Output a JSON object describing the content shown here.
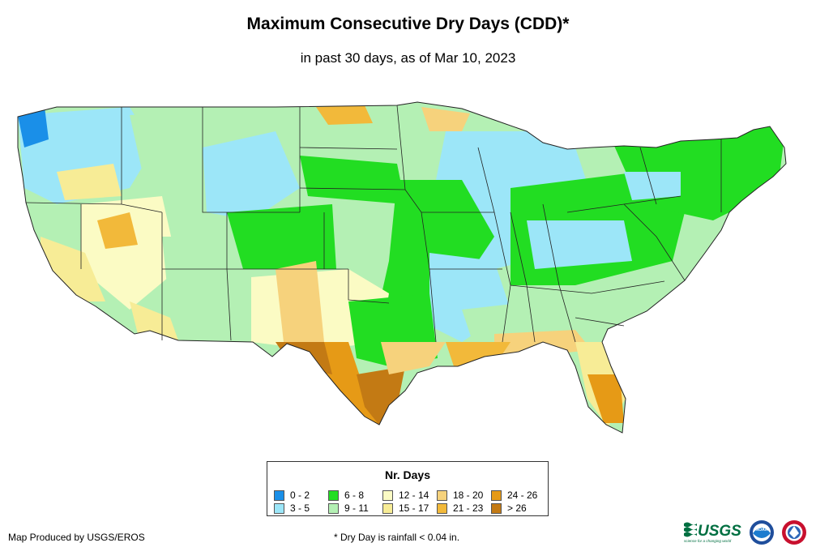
{
  "header": {
    "title": "Maximum Consecutive Dry Days (CDD)*",
    "subtitle": "in past 30 days, as of Mar 10, 2023"
  },
  "legend": {
    "title": "Nr. Days",
    "items": [
      {
        "label": "0 - 2",
        "color": "#1a8fe8"
      },
      {
        "label": "3 - 5",
        "color": "#9ce6f8"
      },
      {
        "label": "6 - 8",
        "color": "#22dd22"
      },
      {
        "label": "9 - 11",
        "color": "#b4f0b4"
      },
      {
        "label": "12 - 14",
        "color": "#fbfbc4"
      },
      {
        "label": "15 - 17",
        "color": "#f7ec96"
      },
      {
        "label": "18 - 20",
        "color": "#f6d27c"
      },
      {
        "label": "21 - 23",
        "color": "#f2b93a"
      },
      {
        "label": "24 - 26",
        "color": "#e69a16"
      },
      {
        "label": "> 26",
        "color": "#c37a14"
      }
    ]
  },
  "footer": {
    "credit": "Map Produced by USGS/EROS",
    "note": "* Dry Day is rainfall < 0.04 in."
  },
  "logos": {
    "usgs_text": "USGS",
    "usgs_tagline": "science for a changing world",
    "noaa_text": "NOAA"
  }
}
